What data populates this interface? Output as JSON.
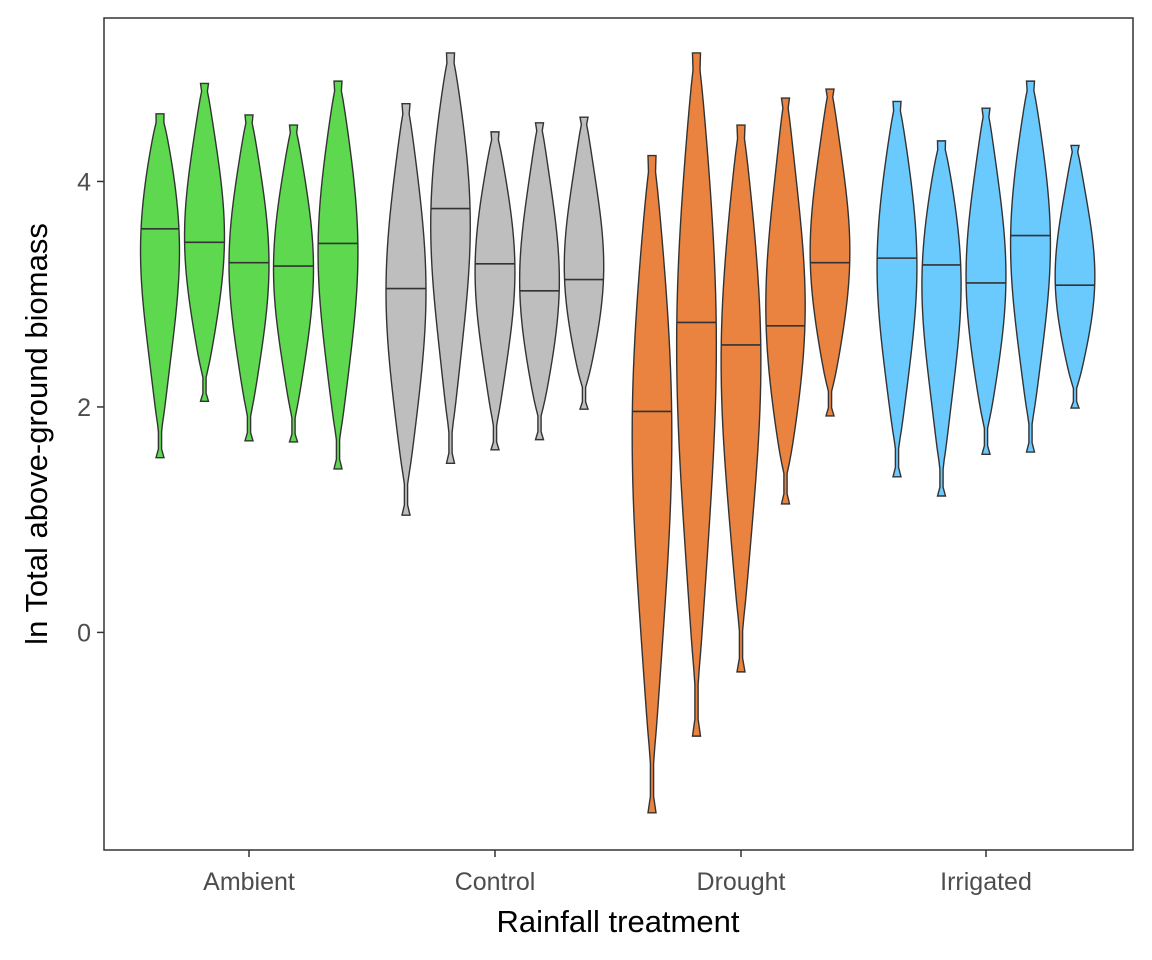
{
  "chart_data": {
    "type": "violin",
    "title": "",
    "xlabel": "Rainfall treatment",
    "ylabel": "ln Total above-ground biomass",
    "ylim": [
      -1.93,
      5.45
    ],
    "yticks": [
      0,
      2,
      4
    ],
    "categories": [
      "Ambient",
      "Control",
      "Drought",
      "Irrigated"
    ],
    "colors": {
      "Ambient": "#5ed94f",
      "Control": "#bebebe",
      "Drought": "#e9833f",
      "Irrigated": "#6ac9fd"
    },
    "violins": [
      {
        "category": "Ambient",
        "min": 1.55,
        "max": 4.6,
        "median": 3.58
      },
      {
        "category": "Ambient",
        "min": 2.05,
        "max": 4.87,
        "median": 3.46
      },
      {
        "category": "Ambient",
        "min": 1.7,
        "max": 4.59,
        "median": 3.28
      },
      {
        "category": "Ambient",
        "min": 1.69,
        "max": 4.5,
        "median": 3.25
      },
      {
        "category": "Ambient",
        "min": 1.45,
        "max": 4.89,
        "median": 3.45
      },
      {
        "category": "Control",
        "min": 1.04,
        "max": 4.69,
        "median": 3.05
      },
      {
        "category": "Control",
        "min": 1.5,
        "max": 5.14,
        "median": 3.76
      },
      {
        "category": "Control",
        "min": 1.62,
        "max": 4.44,
        "median": 3.27
      },
      {
        "category": "Control",
        "min": 1.71,
        "max": 4.52,
        "median": 3.03
      },
      {
        "category": "Control",
        "min": 1.98,
        "max": 4.57,
        "median": 3.13
      },
      {
        "category": "Drought",
        "min": -1.6,
        "max": 4.23,
        "median": 1.96
      },
      {
        "category": "Drought",
        "min": -0.92,
        "max": 5.14,
        "median": 2.75
      },
      {
        "category": "Drought",
        "min": -0.35,
        "max": 4.5,
        "median": 2.55
      },
      {
        "category": "Drought",
        "min": 1.14,
        "max": 4.74,
        "median": 2.72
      },
      {
        "category": "Drought",
        "min": 1.92,
        "max": 4.82,
        "median": 3.28
      },
      {
        "category": "Irrigated",
        "min": 1.38,
        "max": 4.71,
        "median": 3.32
      },
      {
        "category": "Irrigated",
        "min": 1.21,
        "max": 4.36,
        "median": 3.26
      },
      {
        "category": "Irrigated",
        "min": 1.58,
        "max": 4.65,
        "median": 3.1
      },
      {
        "category": "Irrigated",
        "min": 1.6,
        "max": 4.89,
        "median": 3.52
      },
      {
        "category": "Irrigated",
        "min": 1.99,
        "max": 4.32,
        "median": 3.08
      }
    ]
  }
}
